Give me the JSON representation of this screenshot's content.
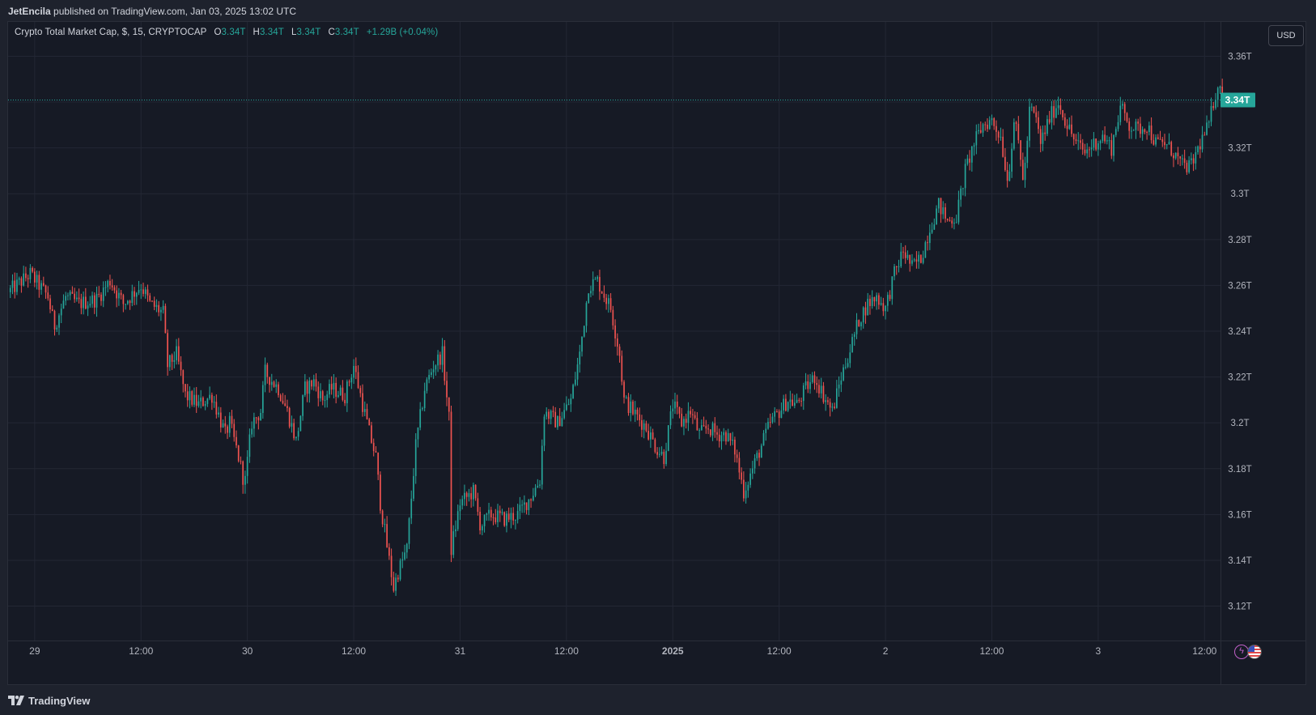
{
  "header": {
    "author": "JetEncila",
    "published_text": "published on TradingView.com, Jan 03, 2025 13:02 UTC"
  },
  "legend": {
    "symbol": "Crypto Total Market Cap, $, 15, CRYPTOCAP",
    "open_label": "O",
    "open": "3.34T",
    "high_label": "H",
    "high": "3.34T",
    "low_label": "L",
    "low": "3.34T",
    "close_label": "C",
    "close": "3.34T",
    "change": "+1.29B (+0.04%)"
  },
  "currency_button": "USD",
  "footer": {
    "brand": "TradingView"
  },
  "colors": {
    "up": "#26a69a",
    "down": "#ef5350",
    "background": "#161a25",
    "grid": "#232734"
  },
  "chart_data": {
    "type": "candlestick",
    "interval": "15",
    "ylim": [
      3.105,
      3.375
    ],
    "y_ticks": [
      {
        "value": 3.36,
        "label": "3.36T"
      },
      {
        "value": 3.34,
        "label": "3.34T"
      },
      {
        "value": 3.32,
        "label": "3.32T"
      },
      {
        "value": 3.3,
        "label": "3.3T"
      },
      {
        "value": 3.28,
        "label": "3.28T"
      },
      {
        "value": 3.26,
        "label": "3.26T"
      },
      {
        "value": 3.24,
        "label": "3.24T"
      },
      {
        "value": 3.22,
        "label": "3.22T"
      },
      {
        "value": 3.2,
        "label": "3.2T"
      },
      {
        "value": 3.18,
        "label": "3.18T"
      },
      {
        "value": 3.16,
        "label": "3.16T"
      },
      {
        "value": 3.14,
        "label": "3.14T"
      },
      {
        "value": 3.12,
        "label": "3.12T"
      }
    ],
    "x_start": "Dec 28 21:00",
    "x_range_hours": [
      0,
      136.8
    ],
    "x_ticks": [
      {
        "hour": 3,
        "label": "29"
      },
      {
        "hour": 15,
        "label": "12:00"
      },
      {
        "hour": 27,
        "label": "30"
      },
      {
        "hour": 39,
        "label": "12:00"
      },
      {
        "hour": 51,
        "label": "31"
      },
      {
        "hour": 63,
        "label": "12:00"
      },
      {
        "hour": 75,
        "label": "2025"
      },
      {
        "hour": 87,
        "label": "12:00"
      },
      {
        "hour": 99,
        "label": "2"
      },
      {
        "hour": 111,
        "label": "12:00"
      },
      {
        "hour": 123,
        "label": "3"
      },
      {
        "hour": 135,
        "label": "12:00"
      }
    ],
    "last_price": {
      "value": 3.3409,
      "label": "3.34T"
    },
    "path_points": [
      [
        0,
        3.257
      ],
      [
        2.5,
        3.265
      ],
      [
        4.5,
        3.255
      ],
      [
        5.2,
        3.242
      ],
      [
        6.5,
        3.255
      ],
      [
        8,
        3.252
      ],
      [
        10,
        3.254
      ],
      [
        11.5,
        3.262
      ],
      [
        13,
        3.252
      ],
      [
        15,
        3.26
      ],
      [
        16,
        3.252
      ],
      [
        17.5,
        3.248
      ],
      [
        18,
        3.225
      ],
      [
        19,
        3.23
      ],
      [
        20,
        3.212
      ],
      [
        21.5,
        3.208
      ],
      [
        23,
        3.212
      ],
      [
        24.5,
        3.195
      ],
      [
        25,
        3.2
      ],
      [
        26,
        3.185
      ],
      [
        26.7,
        3.173
      ],
      [
        27.5,
        3.2
      ],
      [
        28.5,
        3.205
      ],
      [
        29,
        3.222
      ],
      [
        30.5,
        3.215
      ],
      [
        31.5,
        3.205
      ],
      [
        32.5,
        3.192
      ],
      [
        33.5,
        3.215
      ],
      [
        34.5,
        3.218
      ],
      [
        35.5,
        3.21
      ],
      [
        36.5,
        3.215
      ],
      [
        38,
        3.212
      ],
      [
        39,
        3.225
      ],
      [
        40,
        3.208
      ],
      [
        40.8,
        3.195
      ],
      [
        41.5,
        3.185
      ],
      [
        42,
        3.165
      ],
      [
        43,
        3.14
      ],
      [
        43.5,
        3.128
      ],
      [
        44,
        3.135
      ],
      [
        45,
        3.145
      ],
      [
        46,
        3.19
      ],
      [
        47,
        3.215
      ],
      [
        48,
        3.225
      ],
      [
        49,
        3.23
      ],
      [
        49.8,
        3.2
      ],
      [
        50,
        3.145
      ],
      [
        51,
        3.165
      ],
      [
        52.5,
        3.17
      ],
      [
        53.3,
        3.155
      ],
      [
        54.5,
        3.16
      ],
      [
        56,
        3.158
      ],
      [
        57.5,
        3.16
      ],
      [
        59,
        3.168
      ],
      [
        60,
        3.175
      ],
      [
        60.5,
        3.205
      ],
      [
        62,
        3.2
      ],
      [
        63.5,
        3.21
      ],
      [
        64.5,
        3.23
      ],
      [
        65.5,
        3.26
      ],
      [
        66.5,
        3.262
      ],
      [
        68,
        3.25
      ],
      [
        69,
        3.23
      ],
      [
        69.5,
        3.21
      ],
      [
        70.5,
        3.205
      ],
      [
        72,
        3.198
      ],
      [
        73,
        3.19
      ],
      [
        74,
        3.185
      ],
      [
        75,
        3.208
      ],
      [
        76,
        3.2
      ],
      [
        77,
        3.205
      ],
      [
        78,
        3.195
      ],
      [
        79,
        3.198
      ],
      [
        80,
        3.195
      ],
      [
        81,
        3.195
      ],
      [
        82,
        3.188
      ],
      [
        83,
        3.17
      ],
      [
        84,
        3.18
      ],
      [
        85,
        3.19
      ],
      [
        86,
        3.2
      ],
      [
        87,
        3.205
      ],
      [
        88,
        3.21
      ],
      [
        89,
        3.208
      ],
      [
        90,
        3.215
      ],
      [
        91,
        3.22
      ],
      [
        92,
        3.212
      ],
      [
        93,
        3.205
      ],
      [
        94,
        3.22
      ],
      [
        95,
        3.232
      ],
      [
        96,
        3.245
      ],
      [
        97,
        3.252
      ],
      [
        98,
        3.255
      ],
      [
        99,
        3.25
      ],
      [
        100,
        3.265
      ],
      [
        101,
        3.275
      ],
      [
        102,
        3.268
      ],
      [
        103,
        3.272
      ],
      [
        104,
        3.285
      ],
      [
        105,
        3.295
      ],
      [
        106,
        3.288
      ],
      [
        107,
        3.29
      ],
      [
        108,
        3.31
      ],
      [
        109,
        3.322
      ],
      [
        110,
        3.33
      ],
      [
        111,
        3.332
      ],
      [
        112,
        3.325
      ],
      [
        112.8,
        3.305
      ],
      [
        113.5,
        3.332
      ],
      [
        114,
        3.322
      ],
      [
        114.6,
        3.305
      ],
      [
        115.3,
        3.338
      ],
      [
        116,
        3.332
      ],
      [
        116.5,
        3.322
      ],
      [
        117.5,
        3.333
      ],
      [
        118.5,
        3.34
      ],
      [
        119.5,
        3.33
      ],
      [
        120.5,
        3.322
      ],
      [
        121.5,
        3.318
      ],
      [
        122.5,
        3.322
      ],
      [
        123.5,
        3.325
      ],
      [
        124.5,
        3.32
      ],
      [
        125.5,
        3.338
      ],
      [
        126.5,
        3.33
      ],
      [
        127.5,
        3.328
      ],
      [
        128.5,
        3.33
      ],
      [
        129.5,
        3.322
      ],
      [
        130.5,
        3.322
      ],
      [
        131.5,
        3.318
      ],
      [
        132.5,
        3.312
      ],
      [
        133.5,
        3.312
      ],
      [
        134.5,
        3.322
      ],
      [
        135.5,
        3.33
      ],
      [
        136,
        3.34
      ],
      [
        136.5,
        3.348
      ],
      [
        137,
        3.341
      ]
    ]
  }
}
